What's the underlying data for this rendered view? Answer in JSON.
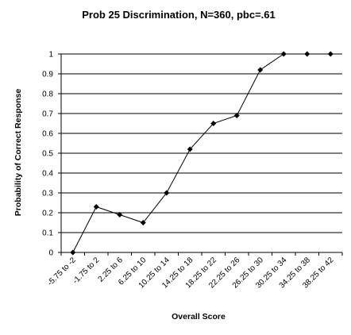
{
  "chart_data": {
    "type": "line",
    "title": "Prob 25 Discrimination, N=360, pbc=.61",
    "xlabel": "Overall Score",
    "ylabel": "Probability of Correct Response",
    "categories": [
      "-5.75 to -2",
      "-1.75 to 2",
      "2.25 to 6",
      "6.25 to 10",
      "10.25 to 14",
      "14.25 to 18",
      "18.25 to 22",
      "22.25 to 26",
      "26.25 to 30",
      "30.25 to 34",
      "34.25 to 38",
      "38.25 to 42"
    ],
    "values": [
      0,
      0.23,
      0.19,
      0.15,
      0.3,
      0.52,
      0.65,
      0.69,
      0.92,
      1.0,
      1.0,
      1.0
    ],
    "ylim": [
      0,
      1
    ],
    "yticks": [
      "0",
      "0.1",
      "0.2",
      "0.3",
      "0.4",
      "0.5",
      "0.6",
      "0.7",
      "0.8",
      "0.9",
      "1"
    ],
    "grid": true,
    "legend": "none",
    "colors": {
      "line": "#000000",
      "marker": "#000000"
    }
  }
}
